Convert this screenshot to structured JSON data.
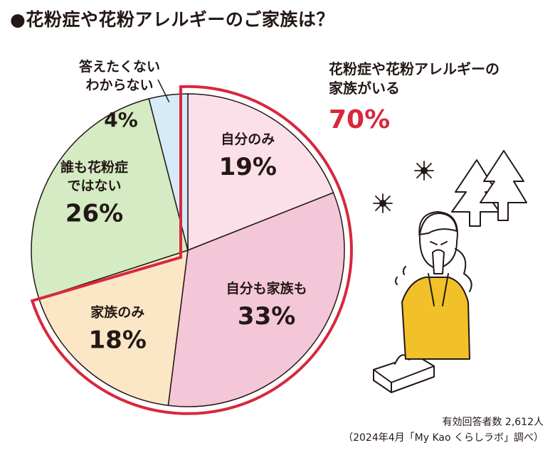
{
  "title": "●花粉症や花粉アレルギーのご家族は？",
  "callout": {
    "text_line1": "花粉症や花粉アレルギーの",
    "text_line2": "家族がいる",
    "value": "70%",
    "color": "#d8283c"
  },
  "footer": {
    "line1": "有効回答者数 2,612人",
    "line2": "（2024年4月「My Kao くらしラボ」調べ）"
  },
  "chart_data": {
    "type": "pie",
    "title": "●花粉症や花粉アレルギーのご家族は？",
    "unit": "%",
    "slices": [
      {
        "label": "自分のみ",
        "value": 19,
        "display": "19%",
        "color": "#fbe0ea"
      },
      {
        "label": "自分も家族も",
        "value": 33,
        "display": "33%",
        "color": "#f3c7d8"
      },
      {
        "label": "家族のみ",
        "value": 18,
        "display": "18%",
        "color": "#fbe6c6"
      },
      {
        "label": "誰も花粉症ではない",
        "value": 26,
        "display": "26%",
        "color": "#d4ebc4"
      },
      {
        "label": "答えたくない わからない",
        "value": 4,
        "display": "4%",
        "color": "#d6ebf8"
      }
    ]
  }
}
